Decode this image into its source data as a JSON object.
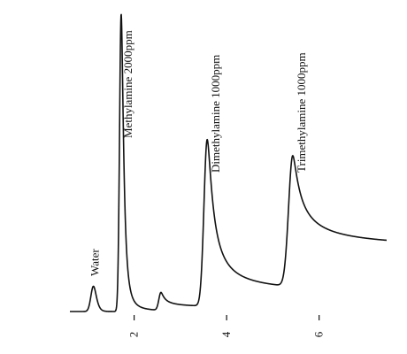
{
  "chart_data": {
    "type": "line",
    "x_ticks": [
      "2",
      "4",
      "6"
    ],
    "xlim": [
      -0.9,
      7.9
    ],
    "baseline_start": 0.0,
    "peaks": [
      {
        "name": "Water",
        "label": "Water",
        "rt": 1.12,
        "height": 0.085,
        "sigma": 0.055,
        "tail": 0.4
      },
      {
        "name": "Methylamine",
        "label": "Methylamine 2000ppm",
        "rt": 1.72,
        "height": 1.0,
        "sigma": 0.035,
        "tail": 0.12
      },
      {
        "name": "Unknown",
        "label": "",
        "rt": 2.58,
        "height": 0.06,
        "sigma": 0.045,
        "tail": 0.07
      },
      {
        "name": "Dimethylamine",
        "label": "Dimethylamine 1000ppm",
        "rt": 3.58,
        "height": 0.56,
        "sigma": 0.07,
        "tail": 0.14
      },
      {
        "name": "Trimethylamine",
        "label": "Trimethylamine 1000ppm",
        "rt": 5.43,
        "height": 0.44,
        "sigma": 0.09,
        "tail": 0.12
      }
    ]
  }
}
